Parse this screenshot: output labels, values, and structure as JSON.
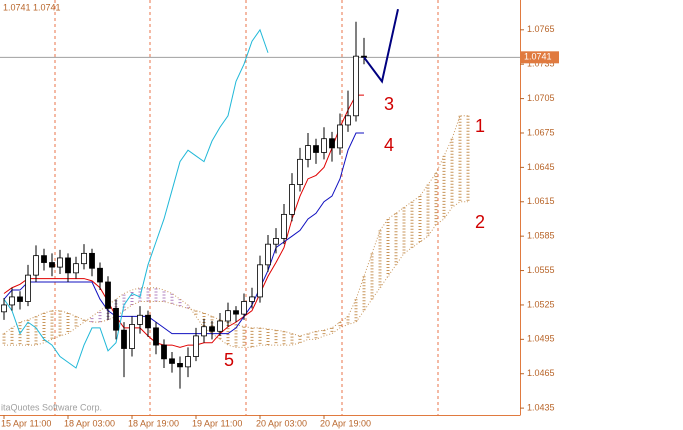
{
  "chart_data": {
    "type": "candlestick",
    "info": "1.0741 1.0741",
    "watermark": "itaQuotes Software Corp.",
    "last_price": 1.0741,
    "xlim": [
      -0.5,
      64.5
    ],
    "ylim": [
      1.0429,
      1.0791
    ],
    "yticks": [
      1.0435,
      1.0465,
      1.0495,
      1.0525,
      1.0555,
      1.0585,
      1.0615,
      1.0645,
      1.0675,
      1.0705,
      1.0735,
      1.0765
    ],
    "xticks": [
      {
        "value": 0,
        "label": "15 Apr 11:00"
      },
      {
        "value": 8,
        "label": "18 Apr 03:00"
      },
      {
        "value": 16,
        "label": "18 Apr 19:00"
      },
      {
        "value": 24,
        "label": "19 Apr 11:00"
      },
      {
        "value": 32,
        "label": "20 Apr 03:00"
      },
      {
        "value": 40,
        "label": "20 Apr 19:00"
      }
    ],
    "separators": [
      6.375,
      18.25,
      30.25,
      42.25,
      54.25
    ],
    "candles": [
      [
        1.0519,
        1.0531,
        1.0512,
        1.0525
      ],
      [
        1.0525,
        1.054,
        1.052,
        1.0532
      ],
      [
        1.0532,
        1.0537,
        1.0521,
        1.0528
      ],
      [
        1.0528,
        1.056,
        1.0524,
        1.0551
      ],
      [
        1.0551,
        1.0577,
        1.0545,
        1.0568
      ],
      [
        1.0568,
        1.0574,
        1.0555,
        1.0562
      ],
      [
        1.0562,
        1.057,
        1.055,
        1.0558
      ],
      [
        1.0558,
        1.0573,
        1.0552,
        1.0566
      ],
      [
        1.0566,
        1.057,
        1.0545,
        1.0553
      ],
      [
        1.0553,
        1.0567,
        1.0548,
        1.0561
      ],
      [
        1.0561,
        1.0578,
        1.0556,
        1.057
      ],
      [
        1.057,
        1.0574,
        1.055,
        1.0557
      ],
      [
        1.0557,
        1.0562,
        1.0538,
        1.0545
      ],
      [
        1.0545,
        1.055,
        1.0512,
        1.0522
      ],
      [
        1.0522,
        1.053,
        1.0495,
        1.0503
      ],
      [
        1.0503,
        1.051,
        1.0462,
        1.0487
      ],
      [
        1.0487,
        1.0515,
        1.048,
        1.0508
      ],
      [
        1.0508,
        1.0524,
        1.05,
        1.0516
      ],
      [
        1.0516,
        1.052,
        1.0497,
        1.0505
      ],
      [
        1.0505,
        1.051,
        1.0482,
        1.049
      ],
      [
        1.049,
        1.0495,
        1.047,
        1.0478
      ],
      [
        1.0478,
        1.0484,
        1.0466,
        1.0474
      ],
      [
        1.0474,
        1.048,
        1.0452,
        1.0471
      ],
      [
        1.0471,
        1.0488,
        1.0462,
        1.048
      ],
      [
        1.048,
        1.0505,
        1.0476,
        1.0498
      ],
      [
        1.0498,
        1.0513,
        1.0492,
        1.0506
      ],
      [
        1.0506,
        1.0511,
        1.0495,
        1.0502
      ],
      [
        1.0502,
        1.0518,
        1.0498,
        1.0511
      ],
      [
        1.0511,
        1.0527,
        1.0506,
        1.052
      ],
      [
        1.052,
        1.0524,
        1.051,
        1.0517
      ],
      [
        1.0517,
        1.0535,
        1.0512,
        1.0528
      ],
      [
        1.0528,
        1.054,
        1.0522,
        1.0532
      ],
      [
        1.0532,
        1.0568,
        1.0527,
        1.056
      ],
      [
        1.056,
        1.0586,
        1.0554,
        1.0578
      ],
      [
        1.0578,
        1.0592,
        1.057,
        1.0583
      ],
      [
        1.0583,
        1.0613,
        1.0578,
        1.0604
      ],
      [
        1.0604,
        1.064,
        1.0598,
        1.063
      ],
      [
        1.063,
        1.0662,
        1.0624,
        1.0652
      ],
      [
        1.0652,
        1.0675,
        1.0645,
        1.0664
      ],
      [
        1.0664,
        1.067,
        1.0648,
        1.0658
      ],
      [
        1.0658,
        1.068,
        1.0652,
        1.067
      ],
      [
        1.067,
        1.0676,
        1.065,
        1.0662
      ],
      [
        1.0662,
        1.0692,
        1.0656,
        1.0682
      ],
      [
        1.0682,
        1.0712,
        1.0676,
        1.069
      ],
      [
        1.069,
        1.0772,
        1.0685,
        1.0742
      ],
      [
        1.0742,
        1.0758,
        1.0735,
        1.0741
      ]
    ],
    "lines": [
      {
        "color": "#e00000",
        "values": [
          1.0535,
          1.054,
          1.0543,
          1.0548,
          1.0548,
          1.0548,
          1.0548,
          1.0548,
          1.0548,
          1.0548,
          1.0548,
          1.0546,
          1.054,
          1.0528,
          1.0515,
          1.0505,
          1.0505,
          1.0505,
          1.0498,
          1.0492,
          1.049,
          1.049,
          1.0488,
          1.049,
          1.049,
          1.0492,
          1.0492,
          1.05,
          1.0506,
          1.051,
          1.0515,
          1.052,
          1.0535,
          1.055,
          1.0562,
          1.0575,
          1.06,
          1.062,
          1.0635,
          1.0638,
          1.0645,
          1.0662,
          1.068,
          1.0695,
          1.0708,
          1.0708
        ]
      },
      {
        "color": "#1010c0",
        "values": [
          1.053,
          1.0538,
          1.0538,
          1.0545,
          1.0545,
          1.0545,
          1.0545,
          1.0545,
          1.0545,
          1.0545,
          1.0545,
          1.0545,
          1.053,
          1.052,
          1.0515,
          1.0515,
          1.0515,
          1.0515,
          1.0515,
          1.051,
          1.0505,
          1.05,
          1.05,
          1.05,
          1.05,
          1.05,
          1.05,
          1.05,
          1.05,
          1.0505,
          1.0515,
          1.0525,
          1.054,
          1.0555,
          1.0575,
          1.058,
          1.0585,
          1.059,
          1.06,
          1.0605,
          1.0615,
          1.062,
          1.0635,
          1.066,
          1.0675,
          1.0675
        ]
      },
      {
        "color": "#20b8d8",
        "values": [
          1.053,
          1.052,
          1.05,
          1.051,
          1.0505,
          1.0495,
          1.049,
          1.048,
          1.0475,
          1.047,
          1.049,
          1.0505,
          1.0505,
          1.0485,
          1.0492,
          1.0525,
          1.0535,
          1.0532,
          1.056,
          1.058,
          1.06,
          1.0625,
          1.065,
          1.066,
          1.0655,
          1.065,
          1.0668,
          1.068,
          1.069,
          1.072,
          1.0735,
          1.0755,
          1.0765,
          1.0745
        ]
      }
    ],
    "cloud": {
      "color_up": "#c8955a",
      "color_down": "#b080c0",
      "span_a": [
        1.05,
        1.0505,
        1.051,
        1.0512,
        1.0515,
        1.0518,
        1.052,
        1.052,
        1.0518,
        1.0515,
        1.0512,
        1.051,
        1.051,
        1.0512,
        1.0515,
        1.052,
        1.0525,
        1.0528,
        1.0528,
        1.0528,
        1.0528,
        1.0526,
        1.0524,
        1.0522,
        1.052,
        1.0518,
        1.0515,
        1.0512,
        1.051,
        1.0508,
        1.0506,
        1.0505,
        1.0505,
        1.0504,
        1.0503,
        1.0502,
        1.05,
        1.0498,
        1.05,
        1.0502,
        1.0503,
        1.0505,
        1.051,
        1.0515,
        1.053,
        1.055,
        1.057,
        1.059,
        1.06,
        1.0605,
        1.061,
        1.0615,
        1.062,
        1.063,
        1.064,
        1.0655,
        1.067,
        1.069,
        1.069
      ],
      "span_b": [
        1.049,
        1.049,
        1.049,
        1.049,
        1.049,
        1.0492,
        1.0495,
        1.0498,
        1.05,
        1.0505,
        1.051,
        1.0515,
        1.052,
        1.0525,
        1.053,
        1.0535,
        1.0538,
        1.054,
        1.054,
        1.054,
        1.0538,
        1.0535,
        1.053,
        1.0525,
        1.0515,
        1.0505,
        1.05,
        1.0495,
        1.049,
        1.0488,
        1.0488,
        1.0488,
        1.049,
        1.049,
        1.049,
        1.049,
        1.049,
        1.0492,
        1.0495,
        1.0495,
        1.0498,
        1.05,
        1.0505,
        1.0508,
        1.051,
        1.052,
        1.053,
        1.054,
        1.055,
        1.056,
        1.057,
        1.0575,
        1.058,
        1.0585,
        1.0595,
        1.06,
        1.061,
        1.0615,
        1.0615
      ]
    },
    "forecast": {
      "color": "#000080",
      "x": [
        45,
        47.25,
        49.25
      ],
      "values": [
        1.0741,
        1.072,
        1.0783
      ]
    },
    "annotations": [
      "1",
      "2",
      "3",
      "4",
      "5"
    ]
  }
}
